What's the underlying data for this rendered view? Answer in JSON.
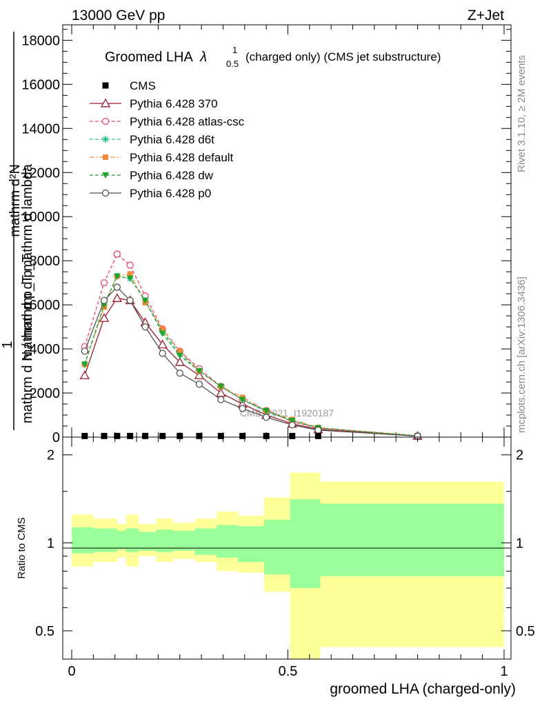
{
  "header": {
    "left": "13000 GeV pp",
    "right": "Z+Jet"
  },
  "side_labels": {
    "rivet": "Rivet 3.1.10, ≥ 2M events",
    "mcplots": "mcplots.cern.ch [arXiv:1306.3436]"
  },
  "watermark": "CMS_2021_I1920187",
  "chart_data": [
    {
      "type": "line",
      "title_main": "Groomed LHA",
      "title_lambda": "λ",
      "title_sup": "1",
      "title_sub": "0.5",
      "title_rest": "(charged only) (CMS jet substructure)",
      "ylabel_lines": [
        "mathrm d²N",
        "mathrm d p_T mathrm d lambda",
        "1",
        "mathrm d N / mathrm d p_T"
      ],
      "xlim": [
        0,
        1
      ],
      "ylim": [
        0,
        18700
      ],
      "yticks": [
        {
          "v": 0,
          "label": "0"
        },
        {
          "v": 2000,
          "label": "2000"
        },
        {
          "v": 4000,
          "label": "4000"
        },
        {
          "v": 6000,
          "label": "6000"
        },
        {
          "v": 8000,
          "label": "8000"
        },
        {
          "v": 10000,
          "label": "10000"
        },
        {
          "v": 12000,
          "label": "12000"
        },
        {
          "v": 14000,
          "label": "14000"
        },
        {
          "v": 16000,
          "label": "16000"
        },
        {
          "v": 18000,
          "label": "18000"
        }
      ],
      "cms": {
        "name": "CMS",
        "x": [
          0.03,
          0.075,
          0.105,
          0.135,
          0.17,
          0.21,
          0.25,
          0.295,
          0.345,
          0.395,
          0.45,
          0.51,
          0.57
        ],
        "y": [
          20,
          20,
          20,
          20,
          20,
          20,
          20,
          20,
          20,
          20,
          20,
          20,
          20
        ]
      },
      "x_points": [
        0.03,
        0.075,
        0.105,
        0.135,
        0.17,
        0.21,
        0.25,
        0.295,
        0.345,
        0.395,
        0.45,
        0.51,
        0.57,
        0.8
      ],
      "series": [
        {
          "name": "Pythia 6.428 370",
          "color": "#9b1b2b",
          "dash": "",
          "marker": "triangle-open",
          "values": [
            2800,
            5400,
            6300,
            6200,
            5200,
            4200,
            3400,
            2800,
            2000,
            1500,
            1000,
            600,
            350,
            50
          ]
        },
        {
          "name": "Pythia 6.428 atlas-csc",
          "color": "#e8456e",
          "dash": "5,3",
          "marker": "circle-open",
          "values": [
            4100,
            7000,
            8300,
            7800,
            6400,
            4900,
            3900,
            3100,
            2300,
            1700,
            1200,
            700,
            400,
            60
          ]
        },
        {
          "name": "Pythia 6.428 d6t",
          "color": "#2ec08a",
          "dash": "5,3",
          "marker": "asterisk",
          "values": [
            3300,
            6000,
            7300,
            7200,
            6200,
            4800,
            3800,
            3000,
            2300,
            1700,
            1150,
            750,
            420,
            60
          ]
        },
        {
          "name": "Pythia 6.428 default",
          "color": "#f08a3a",
          "dash": "7,3,2,3",
          "marker": "square",
          "values": [
            3300,
            5900,
            7300,
            7400,
            6100,
            4900,
            3900,
            3000,
            2300,
            1800,
            1200,
            800,
            430,
            60
          ]
        },
        {
          "name": "Pythia 6.428 dw",
          "color": "#1ea62a",
          "dash": "5,3",
          "marker": "triangle-down",
          "values": [
            3300,
            6000,
            7300,
            7200,
            6200,
            4700,
            3700,
            3000,
            2300,
            1700,
            1200,
            750,
            420,
            60
          ]
        },
        {
          "name": "Pythia 6.428 p0",
          "color": "#505050",
          "dash": "",
          "marker": "circle-open",
          "values": [
            3900,
            6200,
            6800,
            6200,
            5000,
            3800,
            2900,
            2400,
            1700,
            1300,
            900,
            550,
            320,
            45
          ]
        }
      ]
    },
    {
      "type": "area",
      "ylabel": "Ratio to CMS",
      "xlabel": "groomed LHA (charged-only)",
      "xlim": [
        0,
        1
      ],
      "ylim": [
        0.4,
        2.3
      ],
      "yscale": "log",
      "yticks": [
        {
          "v": 0.5,
          "label": "0.5"
        },
        {
          "v": 1,
          "label": "1"
        },
        {
          "v": 2,
          "label": "2"
        }
      ],
      "xticks": [
        {
          "v": 0,
          "label": "0"
        },
        {
          "v": 0.5,
          "label": "0.5"
        },
        {
          "v": 1,
          "label": "1"
        }
      ],
      "bands": [
        {
          "x0": 0.0,
          "x1": 0.05,
          "inner": [
            0.92,
            1.13
          ],
          "outer": [
            0.83,
            1.25
          ]
        },
        {
          "x0": 0.05,
          "x1": 0.105,
          "inner": [
            0.93,
            1.12
          ],
          "outer": [
            0.86,
            1.21
          ]
        },
        {
          "x0": 0.105,
          "x1": 0.125,
          "inner": [
            0.95,
            1.1
          ],
          "outer": [
            0.89,
            1.16
          ]
        },
        {
          "x0": 0.125,
          "x1": 0.155,
          "inner": [
            0.93,
            1.12
          ],
          "outer": [
            0.83,
            1.25
          ]
        },
        {
          "x0": 0.155,
          "x1": 0.195,
          "inner": [
            0.94,
            1.09
          ],
          "outer": [
            0.9,
            1.16
          ]
        },
        {
          "x0": 0.195,
          "x1": 0.235,
          "inner": [
            0.93,
            1.11
          ],
          "outer": [
            0.86,
            1.21
          ]
        },
        {
          "x0": 0.235,
          "x1": 0.285,
          "inner": [
            0.94,
            1.1
          ],
          "outer": [
            0.88,
            1.17
          ]
        },
        {
          "x0": 0.285,
          "x1": 0.335,
          "inner": [
            0.91,
            1.12
          ],
          "outer": [
            0.86,
            1.21
          ]
        },
        {
          "x0": 0.335,
          "x1": 0.385,
          "inner": [
            0.89,
            1.15
          ],
          "outer": [
            0.8,
            1.28
          ]
        },
        {
          "x0": 0.385,
          "x1": 0.445,
          "inner": [
            0.86,
            1.14
          ],
          "outer": [
            0.79,
            1.24
          ]
        },
        {
          "x0": 0.445,
          "x1": 0.505,
          "inner": [
            0.78,
            1.2
          ],
          "outer": [
            0.68,
            1.43
          ]
        },
        {
          "x0": 0.505,
          "x1": 0.575,
          "inner": [
            0.7,
            1.41
          ],
          "outer": [
            0.31,
            1.74
          ]
        },
        {
          "x0": 0.575,
          "x1": 1.0,
          "inner": [
            0.77,
            1.36
          ],
          "outer": [
            0.44,
            1.62
          ]
        }
      ]
    }
  ]
}
